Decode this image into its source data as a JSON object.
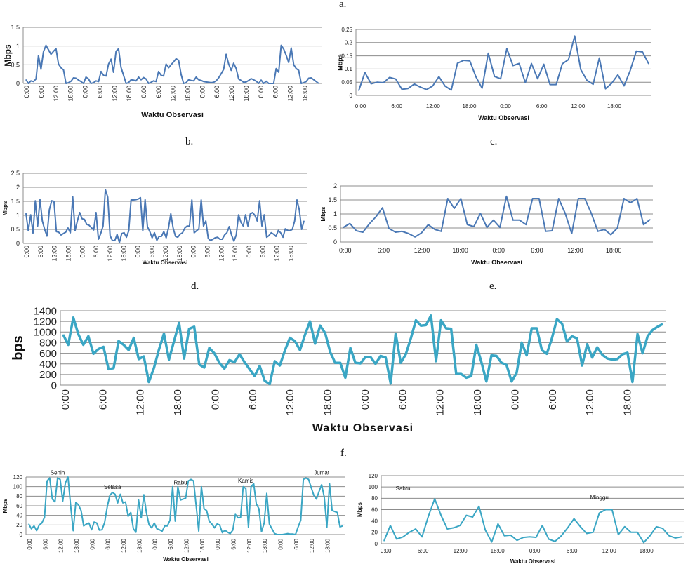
{
  "figure_labels": [
    "a.",
    "b.",
    "c.",
    "d.",
    "e.",
    "f."
  ],
  "chart_data": [
    {
      "id": "chart-b",
      "type": "line",
      "title": "",
      "xlabel": "Waktu Observasi",
      "ylabel": "Mbps",
      "ylim": [
        0,
        1.5
      ],
      "yticks": [
        "0",
        "0.5",
        "1",
        "1.5"
      ],
      "xtick_labels": [
        "0:00",
        "6:00",
        "12:00",
        "18:00",
        "0:00",
        "6:00",
        "12:00",
        "18:00",
        "0:00",
        "6:00",
        "12:00",
        "18:00",
        "0:00",
        "6:00",
        "12:00",
        "18:00",
        "0:00",
        "6:00",
        "12:00",
        "18:00"
      ],
      "xtick_rotated": true,
      "grid": true,
      "line_color": "#4a78b5",
      "values": [
        0.1,
        0.0,
        0.07,
        0.05,
        0.12,
        0.75,
        0.38,
        0.85,
        1.02,
        0.9,
        0.78,
        0.86,
        0.93,
        0.52,
        0.42,
        0.36,
        0.0,
        0.02,
        0.06,
        0.15,
        0.14,
        0.09,
        0.05,
        0.0,
        0.17,
        0.12,
        0.0,
        0.02,
        0.07,
        0.05,
        0.32,
        0.22,
        0.2,
        0.52,
        0.65,
        0.3,
        0.86,
        0.93,
        0.43,
        0.22,
        0.0,
        0.02,
        0.1,
        0.09,
        0.07,
        0.17,
        0.1,
        0.16,
        0.12,
        0.0,
        0.03,
        0.07,
        0.05,
        0.32,
        0.22,
        0.2,
        0.52,
        0.42,
        0.5,
        0.58,
        0.66,
        0.62,
        0.24,
        0.0,
        0.02,
        0.1,
        0.08,
        0.07,
        0.17,
        0.1,
        0.08,
        0.05,
        0.04,
        0.03,
        0.02,
        0.03,
        0.07,
        0.15,
        0.26,
        0.38,
        0.78,
        0.52,
        0.35,
        0.54,
        0.4,
        0.12,
        0.08,
        0.03,
        0.04,
        0.08,
        0.13,
        0.1,
        0.06,
        0.0,
        0.09,
        0.0,
        0.06,
        0.0,
        0.0,
        0.0,
        0.4,
        0.3,
        1.02,
        0.92,
        0.75,
        0.56,
        0.95,
        0.5,
        0.4,
        0.35,
        0.0,
        0.02,
        0.05,
        0.14,
        0.15,
        0.1,
        0.05,
        0.0
      ]
    },
    {
      "id": "chart-c",
      "type": "line",
      "title": "",
      "xlabel": "Waktu Observasi",
      "ylabel": "Mbps",
      "ylim": [
        0,
        0.25
      ],
      "yticks": [
        "0",
        "0.05",
        "0.1",
        "0.15",
        "0.2",
        "0.25"
      ],
      "xtick_labels": [
        "0:00",
        "6:00",
        "12:00",
        "18:00",
        "0:00",
        "6:00",
        "12:00",
        "18:00"
      ],
      "xtick_rotated": false,
      "grid": true,
      "line_color": "#4a78b5",
      "values": [
        0.018,
        0.087,
        0.044,
        0.05,
        0.048,
        0.068,
        0.062,
        0.023,
        0.026,
        0.043,
        0.031,
        0.022,
        0.036,
        0.071,
        0.035,
        0.02,
        0.122,
        0.133,
        0.131,
        0.07,
        0.027,
        0.16,
        0.072,
        0.063,
        0.177,
        0.113,
        0.121,
        0.048,
        0.121,
        0.063,
        0.118,
        0.041,
        0.041,
        0.12,
        0.136,
        0.225,
        0.098,
        0.057,
        0.042,
        0.142,
        0.025,
        0.046,
        0.078,
        0.036,
        0.094,
        0.168,
        0.165,
        0.12
      ]
    },
    {
      "id": "chart-d",
      "type": "line",
      "title": "",
      "xlabel": "Waktu Observasi",
      "ylabel": "Mbps",
      "ylim": [
        0,
        2.5
      ],
      "yticks": [
        "0",
        "0.5",
        "1",
        "1.5",
        "2",
        "2.5"
      ],
      "xtick_labels": [
        "0:00",
        "6:00",
        "12:00",
        "18:00",
        "0:00",
        "6:00",
        "12:00",
        "18:00",
        "0:00",
        "6:00",
        "12:00",
        "18:00",
        "0:00",
        "6:00",
        "12:00",
        "18:00",
        "0:00",
        "6:00",
        "12:00",
        "18:00"
      ],
      "xtick_rotated": true,
      "grid": true,
      "line_color": "#4a78b5",
      "values": [
        1.07,
        0.45,
        1.02,
        0.37,
        1.52,
        0.62,
        1.56,
        0.8,
        0.5,
        0.26,
        1.2,
        1.52,
        1.5,
        0.42,
        0.4,
        0.3,
        0.35,
        0.4,
        0.55,
        0.38,
        1.66,
        0.45,
        0.8,
        1.1,
        0.88,
        0.86,
        0.68,
        0.65,
        0.56,
        0.48,
        1.1,
        0.15,
        0.35,
        0.62,
        1.92,
        1.65,
        0.28,
        0.1,
        0.1,
        0.32,
        0.03,
        0.35,
        0.38,
        0.22,
        0.45,
        1.55,
        1.55,
        1.56,
        1.58,
        1.63,
        0.45,
        1.56,
        0.6,
        0.42,
        0.2,
        0.38,
        0.11,
        0.25,
        0.25,
        0.42,
        0.2,
        0.55,
        1.06,
        0.55,
        0.25,
        0.22,
        0.33,
        0.38,
        0.55,
        0.62,
        0.62,
        1.55,
        0.38,
        0.45,
        0.52,
        1.55,
        0.62,
        0.8,
        0.18,
        0.1,
        0.15,
        0.2,
        0.22,
        0.15,
        0.15,
        0.3,
        0.38,
        0.6,
        0.3,
        0.08,
        0.3,
        1.02,
        0.75,
        0.62,
        1.02,
        0.62,
        1.05,
        1.1,
        1.0,
        0.8,
        1.52,
        0.62,
        1.02,
        0.22,
        0.28,
        0.38,
        0.33,
        0.25,
        0.46,
        0.38,
        0.22,
        0.52,
        0.46,
        0.45,
        0.5,
        0.8,
        1.55,
        1.2,
        0.5,
        0.8
      ]
    },
    {
      "id": "chart-e",
      "type": "line",
      "title": "",
      "xlabel": "Waktu Observasi",
      "ylabel": "Mbps",
      "ylim": [
        0,
        2
      ],
      "yticks": [
        "0",
        "0.5",
        "1",
        "1.5",
        "2"
      ],
      "xtick_labels": [
        "0:00",
        "6:00",
        "12:00",
        "18:00",
        "0:00",
        "6:00",
        "12:00",
        "18:00"
      ],
      "xtick_rotated": false,
      "grid": true,
      "line_color": "#4a78b5",
      "values": [
        0.52,
        0.66,
        0.4,
        0.35,
        0.65,
        0.9,
        1.22,
        0.48,
        0.35,
        0.38,
        0.3,
        0.18,
        0.33,
        0.62,
        0.45,
        0.38,
        1.55,
        1.2,
        1.55,
        0.62,
        0.55,
        1.02,
        0.52,
        0.78,
        0.52,
        1.63,
        0.78,
        0.78,
        0.62,
        1.55,
        1.55,
        0.38,
        0.4,
        1.55,
        1.02,
        0.3,
        1.55,
        1.55,
        1.02,
        0.38,
        0.45,
        0.26,
        0.5,
        1.55,
        1.4,
        1.55,
        0.62,
        0.8
      ]
    },
    {
      "id": "chart-f",
      "type": "line",
      "title": "",
      "xlabel": "Waktu Observasi",
      "ylabel": "bps",
      "ylim": [
        0,
        1400
      ],
      "yticks": [
        "0",
        "200",
        "400",
        "600",
        "800",
        "1000",
        "1200",
        "1400"
      ],
      "xtick_labels": [
        "0:00",
        "6:00",
        "12:00",
        "18:00",
        "0:00",
        "6:00",
        "12:00",
        "18:00",
        "0:00",
        "6:00",
        "12:00",
        "18:00",
        "0:00",
        "6:00",
        "12:00",
        "18:00"
      ],
      "xtick_rotated": true,
      "grid": true,
      "line_color": "#3aa6c4",
      "values": [
        950,
        760,
        1270,
        960,
        760,
        920,
        590,
        680,
        720,
        300,
        320,
        830,
        760,
        660,
        890,
        490,
        540,
        60,
        320,
        670,
        970,
        480,
        830,
        1170,
        500,
        1060,
        1100,
        390,
        330,
        700,
        600,
        420,
        310,
        470,
        430,
        580,
        430,
        300,
        170,
        360,
        80,
        20,
        450,
        370,
        650,
        890,
        830,
        660,
        950,
        1200,
        780,
        1120,
        980,
        620,
        420,
        420,
        140,
        700,
        420,
        410,
        530,
        530,
        400,
        550,
        520,
        30,
        970,
        420,
        580,
        880,
        1220,
        1120,
        1130,
        1310,
        450,
        1220,
        1070,
        1060,
        210,
        210,
        140,
        170,
        760,
        440,
        70,
        560,
        550,
        420,
        380,
        70,
        230,
        800,
        560,
        1070,
        1070,
        660,
        590,
        880,
        1240,
        1160,
        820,
        920,
        880,
        370,
        770,
        520,
        710,
        570,
        500,
        480,
        490,
        580,
        610,
        60,
        960,
        600,
        920,
        1040,
        1100,
        1150
      ]
    },
    {
      "id": "chart-g1",
      "type": "line",
      "title": "",
      "xlabel": "Waktu Observasi",
      "ylabel": "Mbps",
      "ylim": [
        0,
        120
      ],
      "yticks": [
        "0",
        "20",
        "40",
        "60",
        "80",
        "100",
        "120"
      ],
      "xtick_labels": [
        "0:00",
        "6:00",
        "12:00",
        "18:00",
        "0:00",
        "6:00",
        "12:00",
        "18:00",
        "0:00",
        "6:00",
        "12:00",
        "18:00",
        "0:00",
        "6:00",
        "12:00",
        "18:00",
        "0:00",
        "6:00",
        "12:00",
        "18:00"
      ],
      "xtick_rotated": true,
      "grid": true,
      "line_color": "#3aa6c4",
      "annotations": [
        {
          "text": "Senin",
          "at_index": 11,
          "value": 125
        },
        {
          "text": "Selasa",
          "at_index": 32,
          "value": 95
        },
        {
          "text": "Rabu",
          "at_index": 58,
          "value": 105
        },
        {
          "text": "Kamis",
          "at_index": 83,
          "value": 108
        },
        {
          "text": "Jumat",
          "at_index": 112,
          "value": 125
        }
      ],
      "values": [
        22,
        12,
        18,
        8,
        20,
        24,
        36,
        112,
        118,
        74,
        68,
        118,
        115,
        70,
        108,
        120,
        60,
        8,
        67,
        62,
        50,
        18,
        22,
        24,
        10,
        26,
        24,
        9,
        10,
        25,
        58,
        82,
        88,
        84,
        66,
        84,
        66,
        68,
        38,
        46,
        12,
        5,
        72,
        35,
        83,
        45,
        20,
        14,
        24,
        12,
        10,
        7,
        18,
        18,
        30,
        100,
        28,
        100,
        72,
        74,
        76,
        112,
        115,
        112,
        60,
        7,
        100,
        54,
        50,
        28,
        22,
        14,
        22,
        20,
        4,
        9,
        5,
        2,
        9,
        42,
        35,
        36,
        100,
        96,
        15,
        100,
        106,
        64,
        54,
        6,
        24,
        86,
        22,
        12,
        2,
        0,
        0,
        0,
        1,
        2,
        1,
        1,
        0,
        16,
        30,
        115,
        118,
        115,
        98,
        82,
        74,
        90,
        104,
        78,
        15,
        106,
        50,
        48,
        46,
        16,
        18
      ]
    },
    {
      "id": "chart-g2",
      "type": "line",
      "title": "",
      "xlabel": "Waktu Observasi",
      "ylabel": "Mbps",
      "ylim": [
        0,
        120
      ],
      "yticks": [
        "0",
        "20",
        "40",
        "60",
        "80",
        "100",
        "120"
      ],
      "xtick_labels": [
        "0:00",
        "6:00",
        "12:00",
        "18:00",
        "0:00",
        "6:00",
        "12:00",
        "18:00"
      ],
      "xtick_rotated": false,
      "grid": true,
      "line_color": "#3aa6c4",
      "annotations": [
        {
          "text": "Sabtu",
          "at_index": 3,
          "value": 94
        },
        {
          "text": "Minggu",
          "at_index": 34,
          "value": 78
        }
      ],
      "values": [
        5,
        32,
        8,
        12,
        20,
        26,
        12,
        48,
        79,
        50,
        26,
        28,
        32,
        50,
        47,
        66,
        24,
        3,
        35,
        14,
        15,
        6,
        11,
        12,
        11,
        32,
        8,
        4,
        14,
        28,
        44,
        30,
        18,
        20,
        54,
        60,
        60,
        16,
        30,
        20,
        20,
        2,
        14,
        30,
        27,
        14,
        10,
        12
      ]
    }
  ]
}
